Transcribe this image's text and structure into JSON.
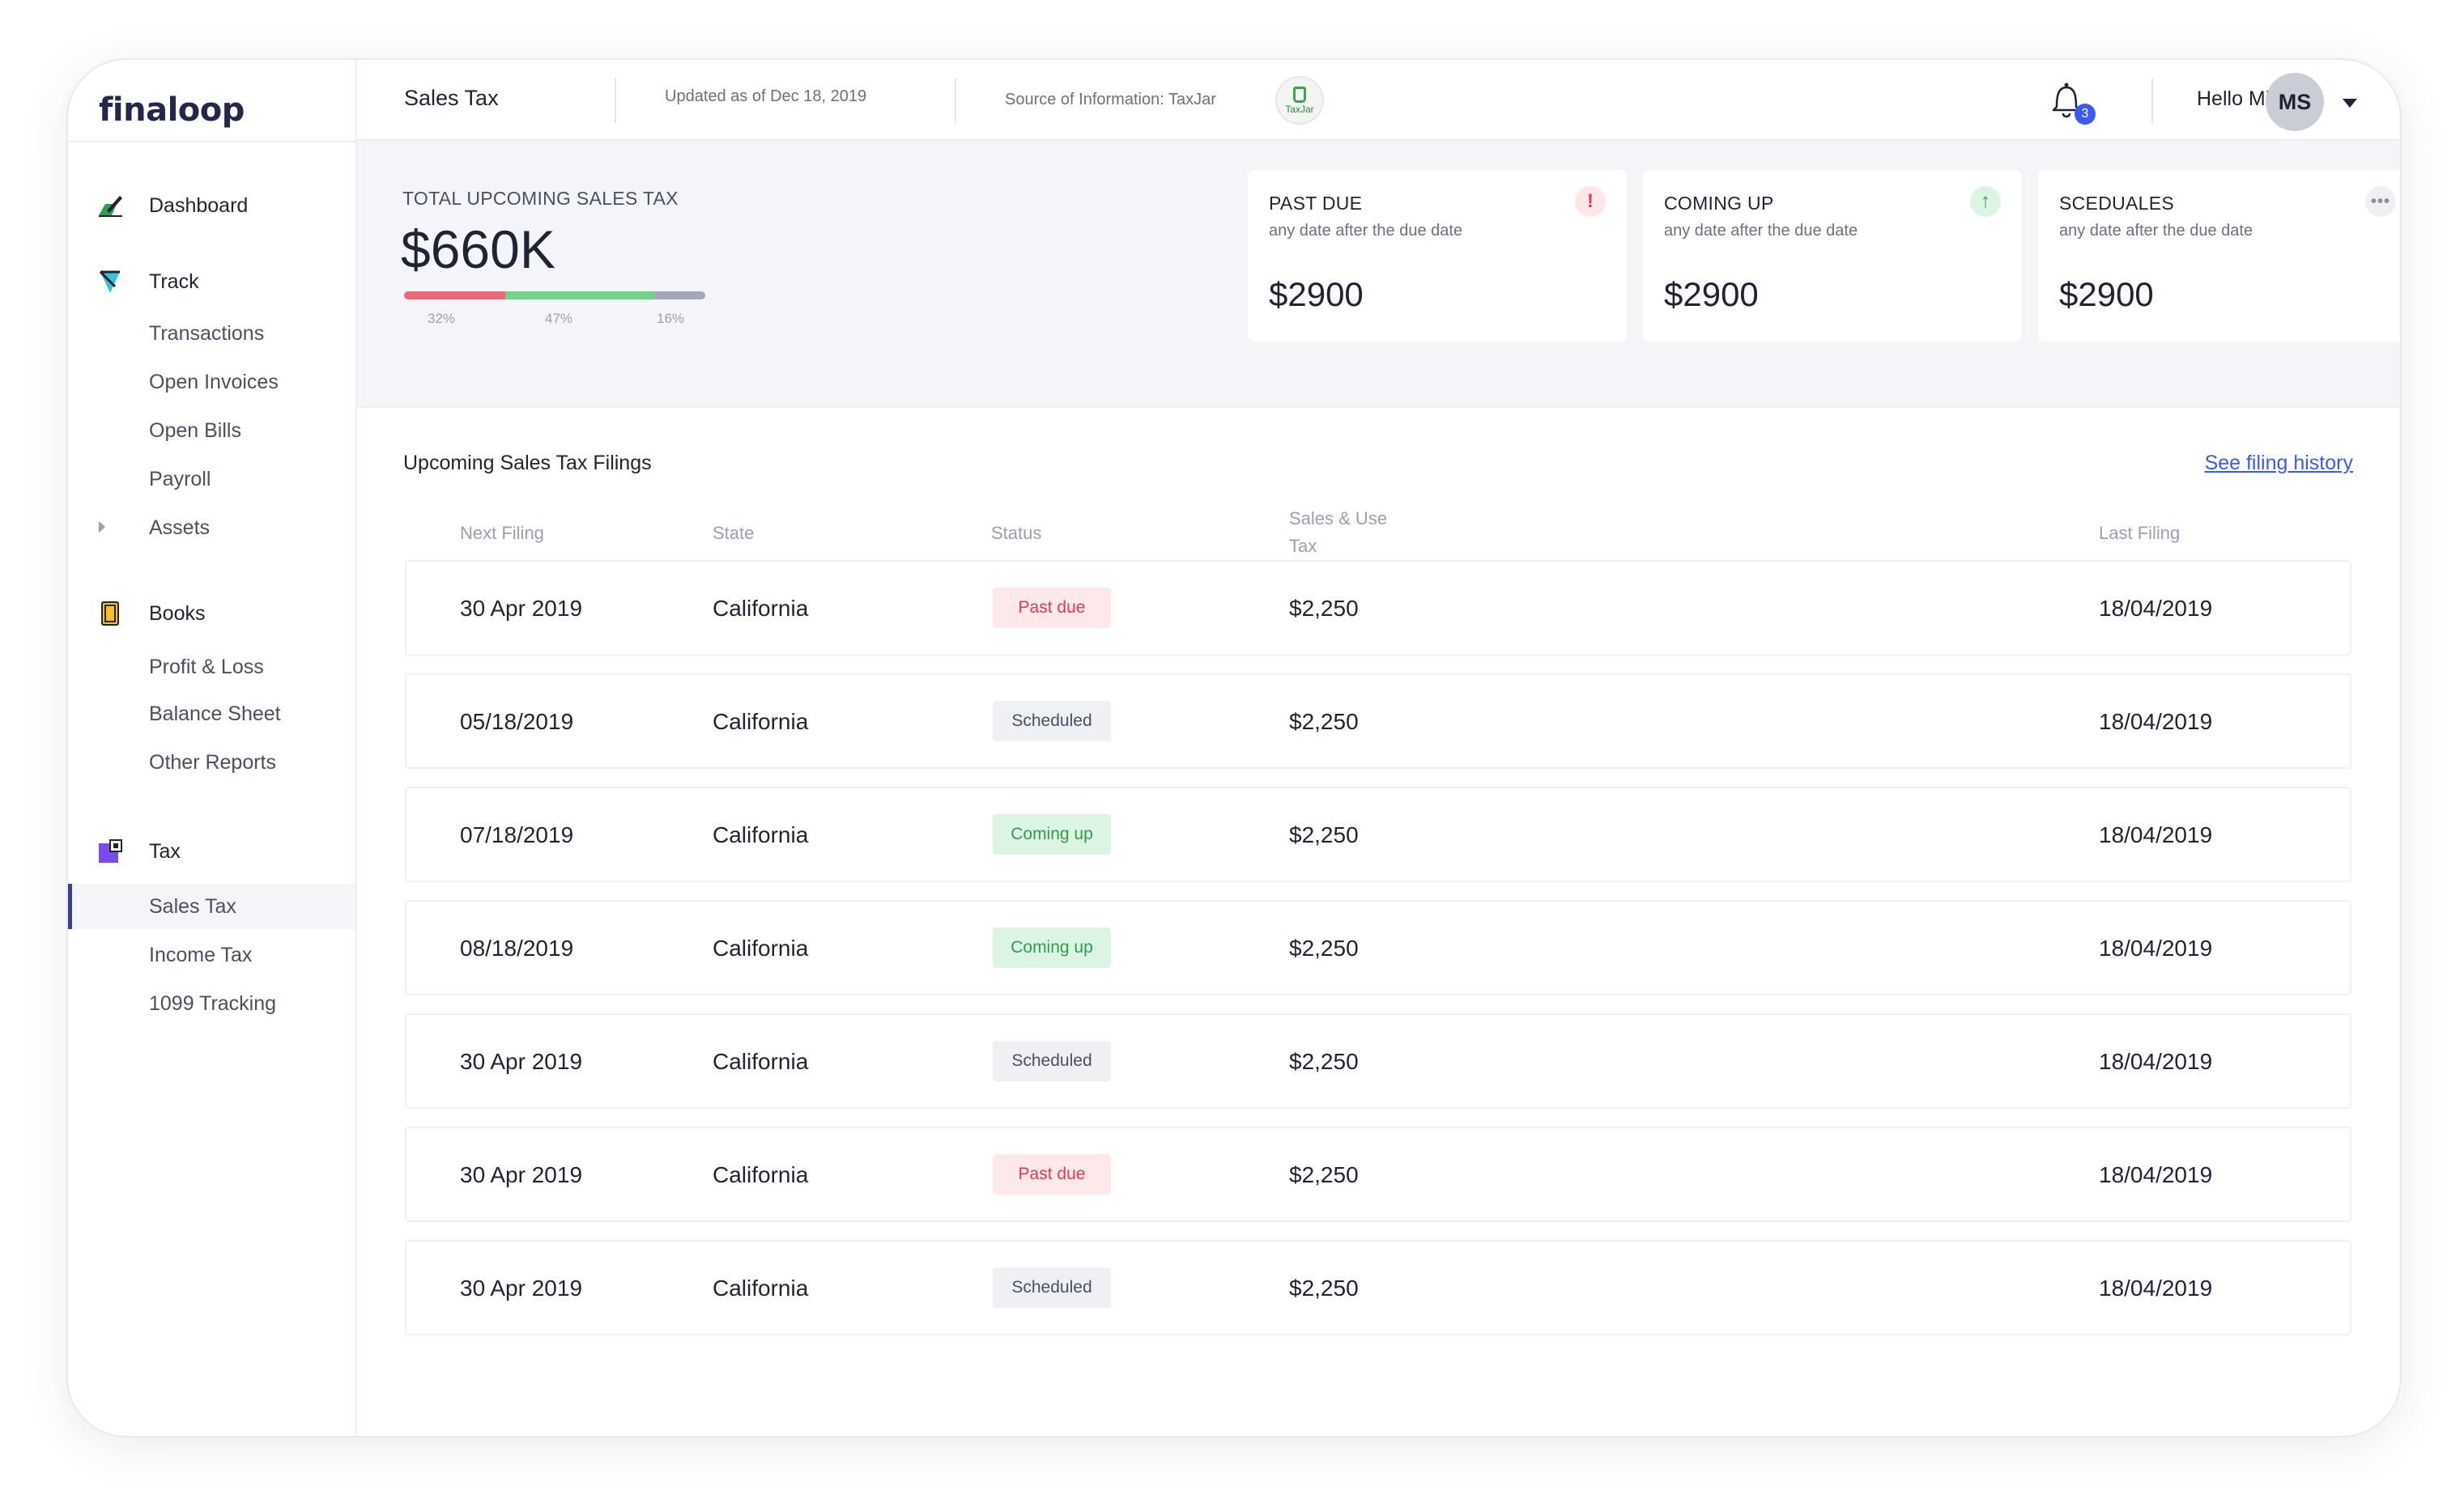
{
  "app": {
    "logo": "finaloop"
  },
  "header": {
    "title": "Sales Tax",
    "updated": "Updated as of Dec 18, 2019",
    "source": "Source of Information: TaxJar",
    "source_badge": "TaxJar",
    "notifications": "3",
    "greeting": "Hello Mike",
    "avatar_initials": "MS"
  },
  "sidebar": {
    "sections": [
      {
        "label": "Dashboard",
        "icon": "dashboard-icon"
      },
      {
        "label": "Track",
        "icon": "track-icon",
        "items": [
          "Transactions",
          "Open Invoices",
          "Open Bills",
          "Payroll",
          "Assets"
        ]
      },
      {
        "label": "Books",
        "icon": "books-icon",
        "items": [
          "Profit & Loss",
          "Balance Sheet",
          "Other Reports"
        ]
      },
      {
        "label": "Tax",
        "icon": "tax-icon",
        "items": [
          "Sales Tax",
          "Income Tax",
          "1099 Tracking"
        ]
      }
    ],
    "active_item": "Sales Tax"
  },
  "summary": {
    "total_label": "TOTAL UPCOMING SALES TAX",
    "total_value": "$660K",
    "breakdown": [
      {
        "percent": 32,
        "label": "32%",
        "color": "#f0677a"
      },
      {
        "percent": 47,
        "label": "47%",
        "color": "#6fd38a"
      },
      {
        "percent": 16,
        "label": "16%",
        "color": "#a2a8b8"
      }
    ],
    "cards": [
      {
        "title": "PAST DUE",
        "subtitle": "any date after the due date",
        "value": "$2900",
        "icon": "alert-icon",
        "glyph": "!"
      },
      {
        "title": "COMING UP",
        "subtitle": "any date after the due date",
        "value": "$2900",
        "icon": "arrow-up-icon",
        "glyph": "↑"
      },
      {
        "title": "SCEDUALES",
        "subtitle": "any date after the due date",
        "value": "$2900",
        "icon": "more-icon",
        "glyph": "•••"
      }
    ]
  },
  "filings": {
    "title": "Upcoming Sales Tax Filings",
    "history_link": "See filing history",
    "columns": [
      "Next Filing",
      "State",
      "Status",
      "Sales & Use",
      "Tax",
      "Last Filing"
    ],
    "rows": [
      {
        "next": "30 Apr 2019",
        "state": "California",
        "status": "Past due",
        "kind": "past",
        "tax": "$2,250",
        "last": "18/04/2019"
      },
      {
        "next": "05/18/2019",
        "state": "California",
        "status": "Scheduled",
        "kind": "sched",
        "tax": "$2,250",
        "last": "18/04/2019"
      },
      {
        "next": "07/18/2019",
        "state": "California",
        "status": "Coming up",
        "kind": "coming",
        "tax": "$2,250",
        "last": "18/04/2019"
      },
      {
        "next": "08/18/2019",
        "state": "California",
        "status": "Coming up",
        "kind": "coming",
        "tax": "$2,250",
        "last": "18/04/2019"
      },
      {
        "next": "30 Apr 2019",
        "state": "California",
        "status": "Scheduled",
        "kind": "sched",
        "tax": "$2,250",
        "last": "18/04/2019"
      },
      {
        "next": "30 Apr 2019",
        "state": "California",
        "status": "Past due",
        "kind": "past",
        "tax": "$2,250",
        "last": "18/04/2019"
      },
      {
        "next": "30 Apr 2019",
        "state": "California",
        "status": "Scheduled",
        "kind": "sched",
        "tax": "$2,250",
        "last": "18/04/2019"
      }
    ]
  }
}
